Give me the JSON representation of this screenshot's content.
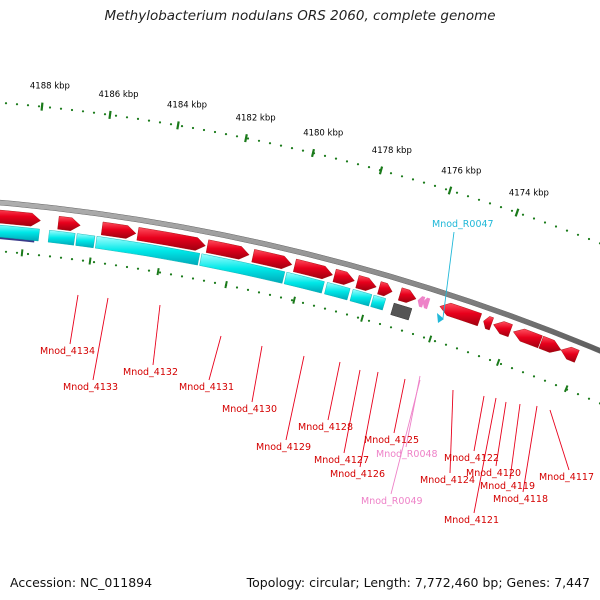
{
  "title": "Methylobacterium nodulans ORS 2060, complete genome",
  "footer": {
    "accession": "Accession: NC_011894",
    "topology": "Topology: circular; Length: 7,772,460 bp; Genes: 7,447"
  },
  "ruler": [
    "4188 kbp",
    "4186 kbp",
    "4184 kbp",
    "4182 kbp",
    "4180 kbp",
    "4178 kbp",
    "4176 kbp",
    "4174 kbp"
  ],
  "gene_labels": [
    {
      "text": "Mnod_4134",
      "kind": "cds"
    },
    {
      "text": "Mnod_4133",
      "kind": "cds"
    },
    {
      "text": "Mnod_4132",
      "kind": "cds"
    },
    {
      "text": "Mnod_4131",
      "kind": "cds"
    },
    {
      "text": "Mnod_4130",
      "kind": "cds"
    },
    {
      "text": "Mnod_4129",
      "kind": "cds"
    },
    {
      "text": "Mnod_4128",
      "kind": "cds"
    },
    {
      "text": "Mnod_4127",
      "kind": "cds"
    },
    {
      "text": "Mnod_4126",
      "kind": "cds"
    },
    {
      "text": "Mnod_4125",
      "kind": "cds"
    },
    {
      "text": "Mnod_R0048",
      "kind": "rna"
    },
    {
      "text": "Mnod_R0049",
      "kind": "rna"
    },
    {
      "text": "Mnod_4124",
      "kind": "cds"
    },
    {
      "text": "Mnod_4122",
      "kind": "cds"
    },
    {
      "text": "Mnod_4120",
      "kind": "cds"
    },
    {
      "text": "Mnod_4119",
      "kind": "cds"
    },
    {
      "text": "Mnod_4118",
      "kind": "cds"
    },
    {
      "text": "Mnod_4121",
      "kind": "cds"
    },
    {
      "text": "Mnod_4117",
      "kind": "cds"
    },
    {
      "text": "Mnod_R0047",
      "kind": "trna"
    }
  ],
  "colors": {
    "cds": "#e8001c",
    "cds_light": "#ff4050",
    "cds_dark": "#a00010",
    "rna": "#ee82c8",
    "trna": "#20b8d8",
    "cyan": "#00e8e8",
    "cyan_dark": "#00a0b0",
    "backbone": "#888888",
    "ruler": "#1a7a1a",
    "gray_block": "#555555",
    "navy": "#3a3a8a"
  }
}
